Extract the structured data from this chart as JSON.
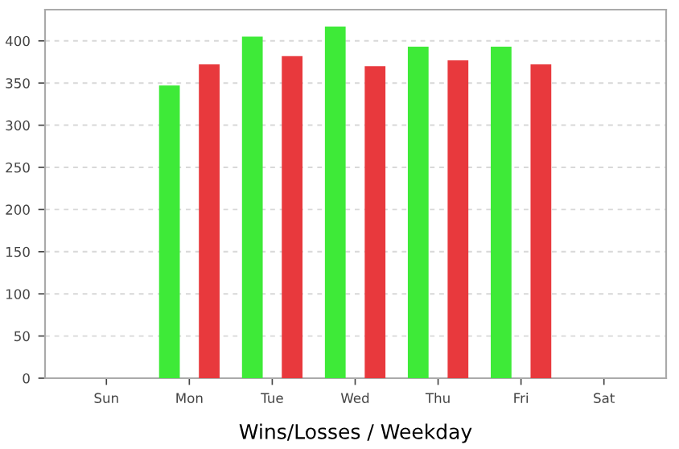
{
  "chart_data": {
    "type": "bar",
    "xlabel": "Wins/Losses / Weekday",
    "categories": [
      "Sun",
      "Mon",
      "Tue",
      "Wed",
      "Thu",
      "Fri",
      "Sat"
    ],
    "series": [
      {
        "color": "#3eea38",
        "values": [
          null,
          347,
          405,
          417,
          393,
          393,
          null
        ]
      },
      {
        "color": "#e8393d",
        "values": [
          null,
          372,
          382,
          370,
          377,
          372,
          null
        ]
      }
    ],
    "ylim": [
      0,
      437
    ],
    "yticks": [
      0,
      50,
      100,
      150,
      200,
      250,
      300,
      350,
      400
    ],
    "grid": "y",
    "legend": false
  }
}
